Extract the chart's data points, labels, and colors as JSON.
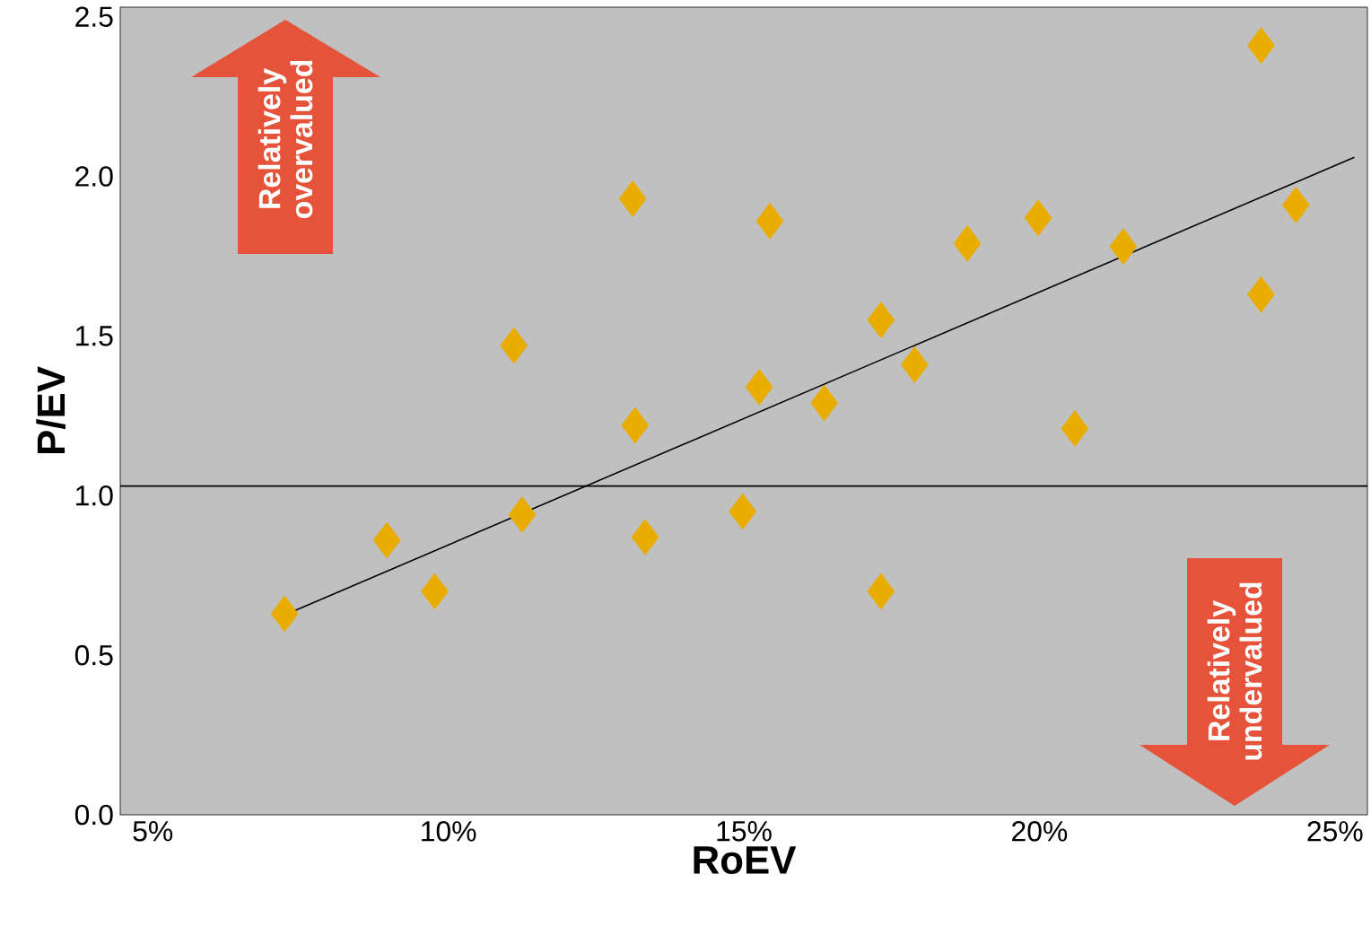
{
  "chart_data": {
    "type": "scatter",
    "xlabel": "RoEV",
    "ylabel": "P/EV",
    "xlim": [
      4.45,
      25.55
    ],
    "ylim": [
      0,
      2.53
    ],
    "xticks": [
      {
        "value": 5,
        "label": "5%"
      },
      {
        "value": 10,
        "label": "10%"
      },
      {
        "value": 15,
        "label": "15%"
      },
      {
        "value": 20,
        "label": "20%"
      },
      {
        "value": 25,
        "label": "25%"
      }
    ],
    "yticks": [
      {
        "value": 0,
        "label": "0.0"
      },
      0.5,
      {
        "value": 1,
        "label": "1.0"
      },
      1.5,
      {
        "value": 2,
        "label": "2.0"
      },
      2.5
    ],
    "marker": "diamond",
    "grid": false,
    "series": [
      {
        "color": "#e8ad00",
        "x": [
          7.23,
          8.96,
          9.77,
          11.11,
          11.25,
          13.12,
          13.16,
          13.33,
          14.98,
          15.26,
          15.44,
          16.36,
          17.32,
          17.32,
          17.89,
          18.78,
          19.98,
          20.6,
          21.42,
          23.75,
          23.75,
          24.34
        ],
        "values": [
          0.63,
          0.86,
          0.7,
          1.47,
          0.94,
          1.93,
          1.22,
          0.87,
          0.95,
          1.34,
          1.86,
          1.29,
          1.55,
          0.7,
          1.41,
          1.79,
          1.87,
          1.21,
          1.78,
          2.41,
          1.63,
          1.91
        ]
      },
      {
        "type": "line",
        "color": "#000000",
        "marker": "none",
        "x": [
          7.41,
          25.33
        ],
        "values": [
          0.64,
          2.06
        ]
      }
    ],
    "ref_lines": [
      {
        "axis": "y",
        "value": 1.03,
        "color": "#000000"
      }
    ],
    "annotations": [
      "Relatively overvalued",
      "Relatively undervalued"
    ]
  }
}
